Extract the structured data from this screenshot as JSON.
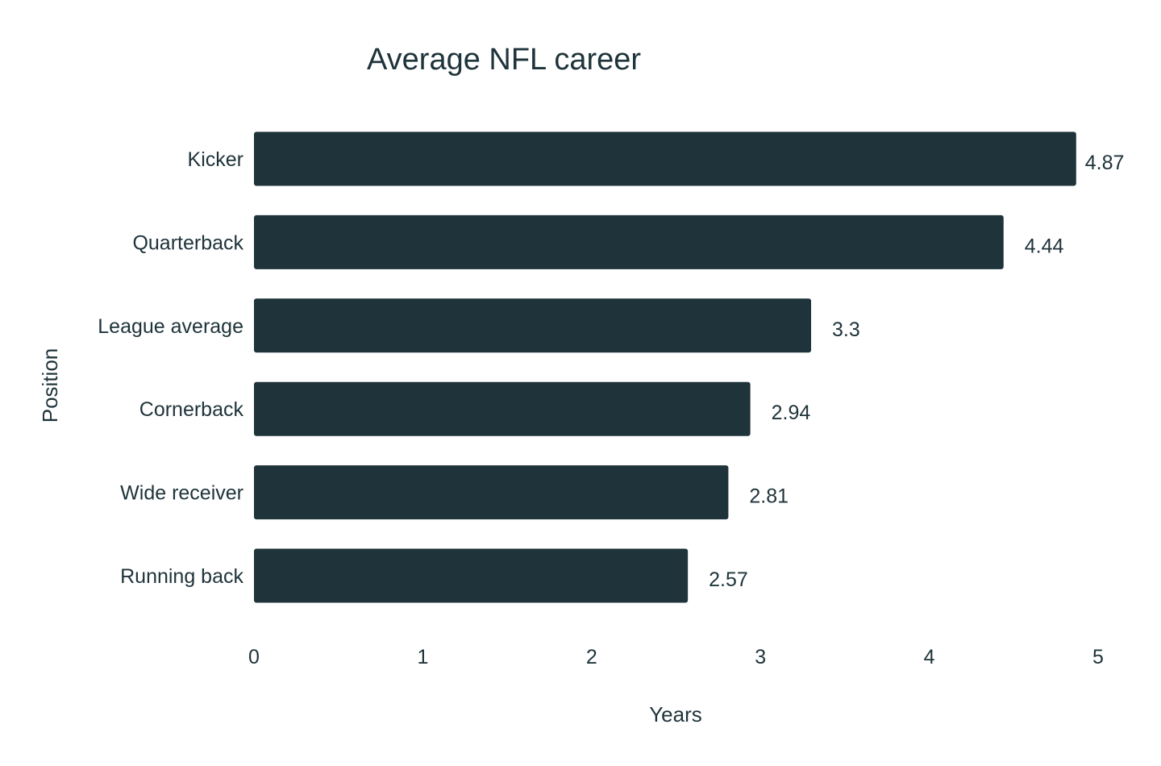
{
  "chart_data": {
    "type": "bar",
    "orientation": "horizontal",
    "title": "Average NFL career",
    "xlabel": "Years",
    "ylabel": "Position",
    "categories": [
      "Kicker",
      "Quarterback",
      "League average",
      "Cornerback",
      "Wide receiver",
      "Running back"
    ],
    "values": [
      4.87,
      4.44,
      3.3,
      2.94,
      2.81,
      2.57
    ],
    "value_labels": [
      "4.87",
      "4.44",
      "3.3",
      "2.94",
      "2.81",
      "2.57"
    ],
    "xlim": [
      0,
      5
    ],
    "xticks": [
      "0",
      "1",
      "2",
      "3",
      "4",
      "5"
    ],
    "grid": false,
    "legend": "none",
    "bar_color": "#1e333a"
  }
}
